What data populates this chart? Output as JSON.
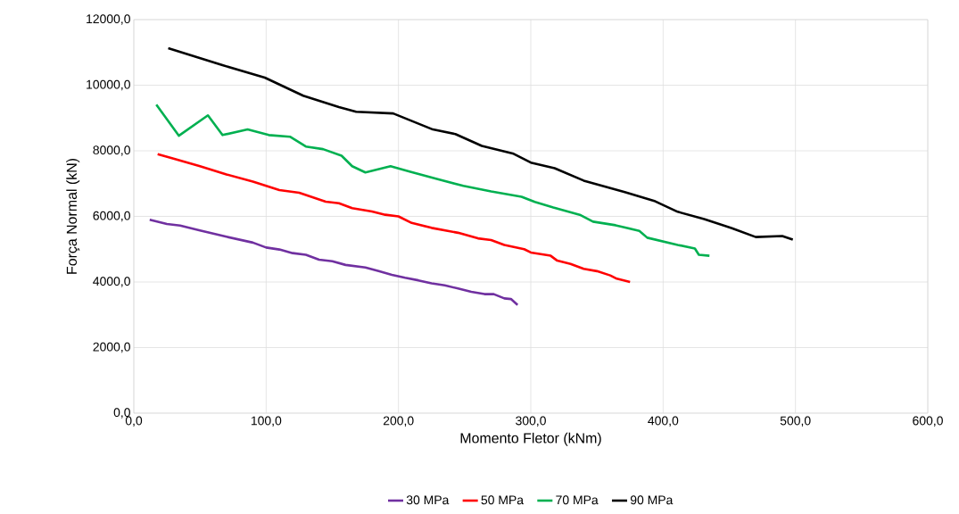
{
  "chart_data": {
    "type": "line",
    "xlabel": "Momento Fletor (kNm)",
    "ylabel": "Força Normal (kN)",
    "xlim": [
      0,
      600
    ],
    "ylim": [
      0,
      12000
    ],
    "xticks": [
      {
        "value": 0,
        "label": "0,0"
      },
      {
        "value": 100,
        "label": "100,0"
      },
      {
        "value": 200,
        "label": "200,0"
      },
      {
        "value": 300,
        "label": "300,0"
      },
      {
        "value": 400,
        "label": "400,0"
      },
      {
        "value": 500,
        "label": "500,0"
      },
      {
        "value": 600,
        "label": "600,0"
      }
    ],
    "yticks": [
      {
        "value": 0,
        "label": "0,0"
      },
      {
        "value": 2000,
        "label": "2000,0"
      },
      {
        "value": 4000,
        "label": "4000,0"
      },
      {
        "value": 6000,
        "label": "6000,0"
      },
      {
        "value": 8000,
        "label": "8000,0"
      },
      {
        "value": 10000,
        "label": "10000,0"
      },
      {
        "value": 12000,
        "label": "12000,0"
      }
    ],
    "grid": true,
    "legend": "bottom",
    "marker": "none",
    "line_style": "solid",
    "series": [
      {
        "name": "30 MPa",
        "color": "#7030a0",
        "x": [
          12,
          25,
          35,
          50,
          70,
          90,
          100,
          110,
          120,
          130,
          140,
          150,
          160,
          175,
          185,
          195,
          205,
          215,
          225,
          235,
          245,
          255,
          265,
          272,
          280,
          285,
          290
        ],
        "values": [
          5900,
          5770,
          5720,
          5570,
          5380,
          5200,
          5050,
          4990,
          4880,
          4830,
          4680,
          4630,
          4520,
          4440,
          4330,
          4220,
          4130,
          4050,
          3960,
          3900,
          3800,
          3700,
          3630,
          3630,
          3500,
          3480,
          3300
        ]
      },
      {
        "name": "50 MPa",
        "color": "#ff0000",
        "x": [
          18,
          30,
          50,
          70,
          90,
          110,
          125,
          145,
          155,
          165,
          180,
          190,
          200,
          210,
          225,
          245,
          260,
          270,
          280,
          295,
          300,
          315,
          320,
          330,
          340,
          350,
          360,
          365,
          375
        ],
        "values": [
          7900,
          7760,
          7530,
          7280,
          7060,
          6800,
          6720,
          6450,
          6400,
          6250,
          6150,
          6050,
          6000,
          5800,
          5650,
          5500,
          5330,
          5280,
          5130,
          5000,
          4900,
          4800,
          4650,
          4550,
          4400,
          4330,
          4200,
          4100,
          4000
        ]
      },
      {
        "name": "70 MPa",
        "color": "#00b050",
        "x": [
          17,
          34,
          56,
          67,
          86,
          102,
          118,
          130,
          143,
          157,
          165,
          175,
          194,
          209,
          229,
          249,
          270,
          293,
          303,
          317,
          337,
          347,
          364,
          382,
          388,
          411,
          424,
          427,
          435
        ],
        "values": [
          9410,
          8460,
          9080,
          8480,
          8650,
          8480,
          8430,
          8130,
          8050,
          7850,
          7530,
          7340,
          7530,
          7360,
          7140,
          6930,
          6760,
          6600,
          6440,
          6270,
          6050,
          5840,
          5730,
          5560,
          5350,
          5130,
          5020,
          4830,
          4800
        ]
      },
      {
        "name": "90 MPa",
        "color": "#000000",
        "x": [
          26,
          67,
          99,
          128,
          155,
          168,
          196,
          226,
          243,
          263,
          287,
          300,
          318,
          340,
          371,
          394,
          411,
          431,
          452,
          470,
          490,
          498
        ],
        "values": [
          11130,
          10610,
          10230,
          9680,
          9330,
          9190,
          9140,
          8650,
          8510,
          8150,
          7910,
          7640,
          7470,
          7090,
          6740,
          6460,
          6140,
          5920,
          5640,
          5370,
          5400,
          5290
        ]
      }
    ]
  }
}
